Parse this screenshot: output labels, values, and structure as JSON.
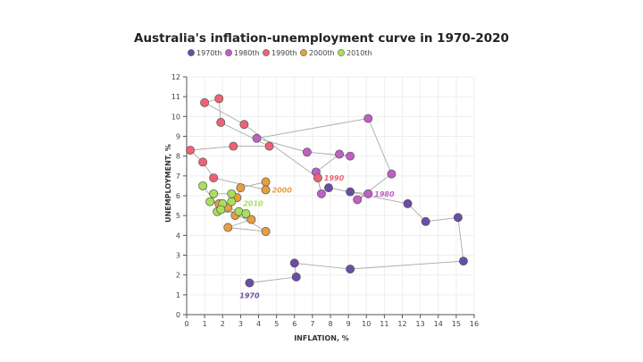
{
  "chart_data": {
    "type": "scatter",
    "title": "Australia's inflation-unemployment curve in 1970-2020",
    "xlabel": "INFLATION, %",
    "ylabel": "UNEMPLOYMENT, %",
    "xlim": [
      0,
      16
    ],
    "ylim": [
      0,
      12
    ],
    "xticks": [
      "0",
      "1",
      "2",
      "3",
      "4",
      "5",
      "6",
      "7",
      "8",
      "9",
      "10",
      "11",
      "12",
      "13",
      "14",
      "15",
      "16"
    ],
    "yticks": [
      "0",
      "1",
      "2",
      "3",
      "4",
      "5",
      "6",
      "7",
      "8",
      "9",
      "10",
      "11",
      "12"
    ],
    "grid": true,
    "legend_position": "top-left",
    "connected": true,
    "series": [
      {
        "name": "1970th",
        "color": "#6a4da8",
        "points": [
          {
            "year": 1970,
            "x": 3.5,
            "y": 1.6
          },
          {
            "year": 1971,
            "x": 6.1,
            "y": 1.9
          },
          {
            "year": 1972,
            "x": 6.0,
            "y": 2.6
          },
          {
            "year": 1973,
            "x": 9.1,
            "y": 2.3
          },
          {
            "year": 1974,
            "x": 15.4,
            "y": 2.7
          },
          {
            "year": 1975,
            "x": 15.1,
            "y": 4.9
          },
          {
            "year": 1976,
            "x": 13.3,
            "y": 4.7
          },
          {
            "year": 1977,
            "x": 12.3,
            "y": 5.6
          },
          {
            "year": 1978,
            "x": 7.9,
            "y": 6.4
          },
          {
            "year": 1979,
            "x": 9.1,
            "y": 6.2
          }
        ]
      },
      {
        "name": "1980th",
        "color": "#c05fc4",
        "points": [
          {
            "year": 1980,
            "x": 10.1,
            "y": 6.1
          },
          {
            "year": 1981,
            "x": 9.5,
            "y": 5.8
          },
          {
            "year": 1982,
            "x": 11.4,
            "y": 7.1
          },
          {
            "year": 1983,
            "x": 10.1,
            "y": 9.9
          },
          {
            "year": 1984,
            "x": 3.9,
            "y": 8.9
          },
          {
            "year": 1985,
            "x": 6.7,
            "y": 8.2
          },
          {
            "year": 1986,
            "x": 9.1,
            "y": 8.0
          },
          {
            "year": 1987,
            "x": 8.5,
            "y": 8.1
          },
          {
            "year": 1988,
            "x": 7.2,
            "y": 7.2
          },
          {
            "year": 1989,
            "x": 7.5,
            "y": 6.1
          }
        ]
      },
      {
        "name": "1990th",
        "color": "#ee6272",
        "points": [
          {
            "year": 1990,
            "x": 7.3,
            "y": 6.9
          },
          {
            "year": 1991,
            "x": 3.2,
            "y": 9.6
          },
          {
            "year": 1992,
            "x": 1.0,
            "y": 10.7
          },
          {
            "year": 1993,
            "x": 1.8,
            "y": 10.9
          },
          {
            "year": 1994,
            "x": 1.9,
            "y": 9.7
          },
          {
            "year": 1995,
            "x": 4.6,
            "y": 8.5
          },
          {
            "year": 1996,
            "x": 2.6,
            "y": 8.5
          },
          {
            "year": 1997,
            "x": 0.2,
            "y": 8.3
          },
          {
            "year": 1998,
            "x": 0.9,
            "y": 7.7
          },
          {
            "year": 1999,
            "x": 1.5,
            "y": 6.9
          }
        ]
      },
      {
        "name": "2000th",
        "color": "#e79f3e",
        "points": [
          {
            "year": 2000,
            "x": 4.4,
            "y": 6.3
          },
          {
            "year": 2001,
            "x": 4.4,
            "y": 6.7
          },
          {
            "year": 2002,
            "x": 3.0,
            "y": 6.4
          },
          {
            "year": 2003,
            "x": 2.8,
            "y": 5.9
          },
          {
            "year": 2004,
            "x": 2.3,
            "y": 5.4
          },
          {
            "year": 2005,
            "x": 2.7,
            "y": 5.0
          },
          {
            "year": 2006,
            "x": 3.6,
            "y": 4.8
          },
          {
            "year": 2007,
            "x": 2.3,
            "y": 4.4
          },
          {
            "year": 2008,
            "x": 4.4,
            "y": 4.2
          },
          {
            "year": 2009,
            "x": 1.8,
            "y": 5.6
          }
        ]
      },
      {
        "name": "2010th",
        "color": "#a8e05a",
        "points": [
          {
            "year": 2010,
            "x": 2.9,
            "y": 5.2
          },
          {
            "year": 2011,
            "x": 3.3,
            "y": 5.1
          },
          {
            "year": 2012,
            "x": 1.7,
            "y": 5.2
          },
          {
            "year": 2013,
            "x": 2.5,
            "y": 5.7
          },
          {
            "year": 2014,
            "x": 2.5,
            "y": 6.1
          },
          {
            "year": 2015,
            "x": 1.5,
            "y": 6.1
          },
          {
            "year": 2016,
            "x": 1.3,
            "y": 5.7
          },
          {
            "year": 2017,
            "x": 2.0,
            "y": 5.6
          },
          {
            "year": 2018,
            "x": 1.9,
            "y": 5.3
          },
          {
            "year": 2019,
            "x": 0.9,
            "y": 6.5
          }
        ]
      }
    ],
    "annotations": [
      {
        "text": "1970",
        "x": 3.5,
        "y": 1.6,
        "color": "#6a4da8",
        "anchor": "below"
      },
      {
        "text": "1980",
        "x": 10.1,
        "y": 6.1,
        "color": "#c05fc4",
        "anchor": "right"
      },
      {
        "text": "1990",
        "x": 7.3,
        "y": 6.9,
        "color": "#ee6272",
        "anchor": "right"
      },
      {
        "text": "2000",
        "x": 4.4,
        "y": 6.3,
        "color": "#e79f3e",
        "anchor": "right"
      },
      {
        "text": "2010",
        "x": 2.9,
        "y": 5.2,
        "color": "#a8e05a",
        "anchor": "above-right"
      }
    ]
  }
}
